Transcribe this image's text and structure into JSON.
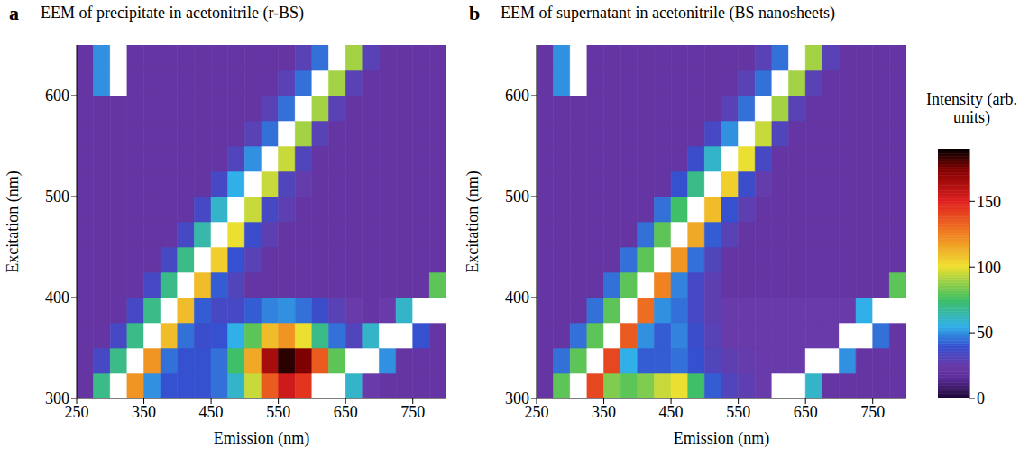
{
  "chart_data": [
    {
      "type": "heatmap",
      "panel": "a",
      "title": "EEM of precipitate in acetonitrile (r-BS)",
      "x_label": "Emission (nm)",
      "y_label": "Excitation (nm)",
      "xlim": [
        250,
        800
      ],
      "xticks": [
        250,
        350,
        450,
        550,
        650,
        750
      ],
      "ylim": [
        300,
        650
      ],
      "yticks": [
        300,
        400,
        500,
        600
      ],
      "x_edges": [
        250,
        275,
        300,
        325,
        350,
        375,
        400,
        425,
        450,
        475,
        500,
        525,
        550,
        575,
        600,
        625,
        650,
        675,
        700,
        725,
        750,
        775,
        800
      ],
      "y_edges": [
        300,
        325,
        350,
        375,
        400,
        425,
        450,
        475,
        500,
        525,
        550,
        575,
        600,
        625,
        650
      ],
      "cells": [
        [
          22,
          70,
          250,
          120,
          50,
          40,
          40,
          40,
          45,
          60,
          95,
          135,
          155,
          145,
          220,
          220,
          60,
          25,
          22,
          22,
          22,
          22
        ],
        [
          22,
          35,
          70,
          250,
          120,
          45,
          40,
          40,
          45,
          75,
          115,
          165,
          185,
          175,
          135,
          80,
          220,
          220,
          50,
          22,
          22,
          22
        ],
        [
          22,
          22,
          35,
          70,
          250,
          110,
          45,
          38,
          40,
          55,
          80,
          110,
          120,
          100,
          70,
          45,
          32,
          60,
          220,
          220,
          40,
          22
        ],
        [
          22,
          22,
          22,
          35,
          70,
          250,
          110,
          42,
          35,
          35,
          42,
          48,
          50,
          45,
          38,
          30,
          25,
          22,
          25,
          60,
          220,
          220
        ],
        [
          22,
          22,
          22,
          22,
          35,
          70,
          250,
          110,
          42,
          32,
          22,
          22,
          22,
          22,
          22,
          22,
          22,
          22,
          22,
          22,
          22,
          80
        ],
        [
          22,
          22,
          22,
          22,
          22,
          35,
          70,
          250,
          105,
          40,
          30,
          22,
          22,
          22,
          22,
          22,
          22,
          22,
          22,
          22,
          22,
          22
        ],
        [
          22,
          22,
          22,
          22,
          22,
          22,
          35,
          65,
          250,
          100,
          38,
          28,
          22,
          22,
          22,
          22,
          22,
          22,
          22,
          22,
          22,
          22
        ],
        [
          22,
          22,
          22,
          22,
          22,
          22,
          22,
          35,
          60,
          250,
          95,
          35,
          28,
          22,
          22,
          22,
          22,
          22,
          22,
          22,
          22,
          22
        ],
        [
          22,
          22,
          22,
          22,
          22,
          22,
          22,
          22,
          35,
          55,
          250,
          95,
          32,
          26,
          22,
          22,
          22,
          22,
          22,
          22,
          22,
          22
        ],
        [
          22,
          22,
          22,
          22,
          22,
          22,
          22,
          22,
          22,
          32,
          50,
          250,
          95,
          32,
          22,
          22,
          22,
          22,
          22,
          22,
          22,
          22
        ],
        [
          22,
          22,
          22,
          22,
          22,
          22,
          22,
          22,
          22,
          22,
          30,
          45,
          250,
          90,
          30,
          22,
          22,
          22,
          22,
          22,
          22,
          22
        ],
        [
          22,
          22,
          22,
          22,
          22,
          22,
          22,
          22,
          22,
          22,
          22,
          30,
          45,
          250,
          90,
          30,
          22,
          22,
          22,
          22,
          22,
          22
        ],
        [
          22,
          50,
          220,
          22,
          22,
          22,
          22,
          22,
          22,
          22,
          22,
          22,
          30,
          45,
          250,
          90,
          30,
          22,
          22,
          22,
          22,
          22
        ],
        [
          22,
          50,
          220,
          22,
          22,
          22,
          22,
          22,
          22,
          22,
          22,
          22,
          22,
          30,
          45,
          250,
          90,
          30,
          22,
          22,
          22,
          22
        ]
      ]
    },
    {
      "type": "heatmap",
      "panel": "b",
      "title": "EEM of supernatant in acetonitrile (BS nanosheets)",
      "x_label": "Emission (nm)",
      "y_label": "Excitation (nm)",
      "xlim": [
        250,
        800
      ],
      "xticks": [
        250,
        350,
        450,
        550,
        650,
        750
      ],
      "ylim": [
        300,
        650
      ],
      "yticks": [
        300,
        400,
        500,
        600
      ],
      "x_edges": [
        250,
        275,
        300,
        325,
        350,
        375,
        400,
        425,
        450,
        475,
        500,
        525,
        550,
        575,
        600,
        625,
        650,
        675,
        700,
        725,
        750,
        775,
        800
      ],
      "y_edges": [
        300,
        325,
        350,
        375,
        400,
        425,
        450,
        475,
        500,
        525,
        550,
        575,
        600,
        625,
        650
      ],
      "cells": [
        [
          22,
          80,
          250,
          140,
          85,
          80,
          85,
          95,
          100,
          75,
          42,
          32,
          28,
          25,
          220,
          220,
          60,
          22,
          22,
          22,
          22,
          22
        ],
        [
          22,
          45,
          80,
          250,
          140,
          55,
          42,
          42,
          45,
          40,
          32,
          28,
          26,
          25,
          25,
          25,
          220,
          220,
          50,
          22,
          22,
          22
        ],
        [
          22,
          22,
          45,
          80,
          250,
          135,
          50,
          42,
          48,
          38,
          30,
          25,
          25,
          25,
          25,
          25,
          25,
          25,
          220,
          220,
          45,
          22
        ],
        [
          22,
          22,
          22,
          45,
          80,
          250,
          130,
          50,
          45,
          35,
          28,
          25,
          25,
          25,
          25,
          25,
          25,
          25,
          25,
          55,
          220,
          220
        ],
        [
          22,
          22,
          22,
          22,
          45,
          80,
          250,
          125,
          48,
          35,
          28,
          22,
          22,
          22,
          22,
          22,
          22,
          22,
          22,
          22,
          22,
          80
        ],
        [
          22,
          22,
          22,
          22,
          22,
          45,
          80,
          250,
          120,
          45,
          32,
          22,
          22,
          22,
          22,
          22,
          22,
          22,
          22,
          22,
          22,
          22
        ],
        [
          22,
          22,
          22,
          22,
          22,
          22,
          45,
          80,
          250,
          115,
          42,
          30,
          22,
          22,
          22,
          22,
          22,
          22,
          22,
          22,
          22,
          22
        ],
        [
          22,
          22,
          22,
          22,
          22,
          22,
          22,
          45,
          75,
          250,
          110,
          40,
          28,
          22,
          22,
          22,
          22,
          22,
          22,
          22,
          22,
          22
        ],
        [
          22,
          22,
          22,
          22,
          22,
          22,
          22,
          22,
          40,
          70,
          250,
          105,
          38,
          26,
          22,
          22,
          22,
          22,
          22,
          22,
          22,
          22
        ],
        [
          22,
          22,
          22,
          22,
          22,
          22,
          22,
          22,
          22,
          38,
          60,
          250,
          100,
          35,
          22,
          22,
          22,
          22,
          22,
          22,
          22,
          22
        ],
        [
          22,
          22,
          22,
          22,
          22,
          22,
          22,
          22,
          22,
          22,
          35,
          50,
          250,
          95,
          32,
          22,
          22,
          22,
          22,
          22,
          22,
          22
        ],
        [
          22,
          22,
          22,
          22,
          22,
          22,
          22,
          22,
          22,
          22,
          22,
          30,
          45,
          250,
          90,
          30,
          22,
          22,
          22,
          22,
          22,
          22
        ],
        [
          22,
          50,
          220,
          22,
          22,
          22,
          22,
          22,
          22,
          22,
          22,
          22,
          30,
          45,
          250,
          90,
          30,
          22,
          22,
          22,
          22,
          22
        ],
        [
          22,
          50,
          220,
          22,
          22,
          22,
          22,
          22,
          22,
          22,
          22,
          22,
          22,
          30,
          45,
          250,
          90,
          30,
          22,
          22,
          22,
          22
        ]
      ],
      "colorbar": {
        "label": "Intensity (arb. units)",
        "range": [
          0,
          190
        ],
        "ticks": [
          0,
          50,
          100,
          150
        ]
      }
    }
  ]
}
